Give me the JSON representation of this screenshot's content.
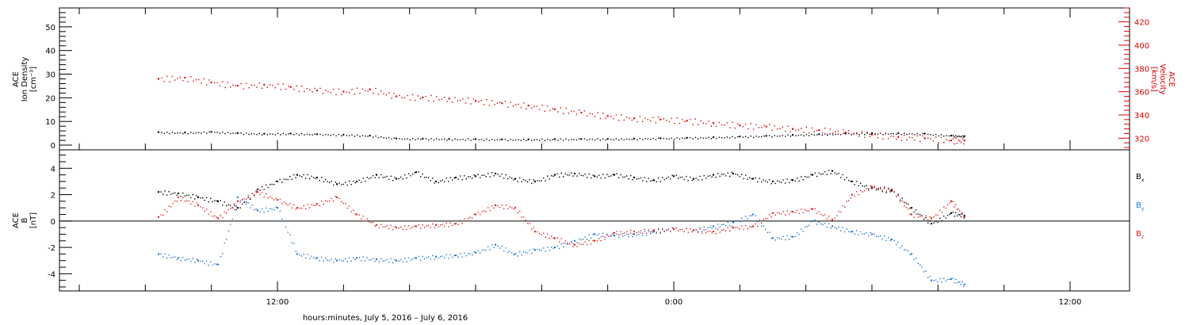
{
  "chart_data": [
    {
      "type": "scatter",
      "panel": "top",
      "ylabel_left": [
        "ACE",
        "Ion Density",
        "[cm⁻³]"
      ],
      "ylabel_right": [
        "ACE",
        "Velocity",
        "[km/s]"
      ],
      "ylim_left": [
        -2,
        58
      ],
      "ylim_right": [
        310,
        432
      ],
      "yticks_left": [
        "0",
        "10",
        "20",
        "30",
        "40",
        "50"
      ],
      "yticks_right": [
        "320",
        "340",
        "360",
        "380",
        "400",
        "420"
      ],
      "colors": {
        "density": "#000000",
        "velocity": "#dd0000"
      },
      "series": [
        {
          "axis": "left",
          "color": "#000000",
          "x": [
            -15.6,
            -14.8,
            -14,
            -13.2,
            -12.4,
            -11.6,
            -10.8,
            -10,
            -9.2,
            -8.4,
            -7.6,
            -6.8,
            -6,
            -5.2,
            -4.4,
            -3.6,
            -2.8,
            -2,
            -1.2,
            -0.4,
            0.4,
            1.2,
            2,
            2.8,
            3.6,
            4.4,
            5.2,
            6,
            6.8,
            7.6,
            8.4,
            8.8
          ],
          "y": [
            5.4,
            5.3,
            5.6,
            5.1,
            4.8,
            4.9,
            4.6,
            4.4,
            4,
            2.8,
            2.7,
            2.6,
            2.5,
            2.4,
            2.4,
            2.5,
            2.6,
            2.6,
            2.7,
            2.9,
            3.1,
            3.3,
            3.6,
            3.9,
            4.3,
            4.6,
            4.9,
            5,
            5,
            4.8,
            4,
            3.8
          ]
        }
      ],
      "series_right": [
        {
          "axis": "right",
          "color": "#dd0000",
          "x": [
            -15.6,
            -14.8,
            -14,
            -13.2,
            -12.4,
            -11.6,
            -10.8,
            -10,
            -9.2,
            -8.4,
            -7.6,
            -6.8,
            -6,
            -5.2,
            -4.4,
            -3.6,
            -2.8,
            -2,
            -1.2,
            -0.4,
            0.4,
            1.2,
            2,
            2.8,
            3.6,
            4.4,
            5.2,
            6,
            6.8,
            7.6,
            8.4,
            8.8
          ],
          "y": [
            371,
            372,
            368,
            365,
            366,
            364,
            361,
            360,
            362,
            356,
            355,
            354,
            352,
            350,
            348,
            345,
            342,
            339,
            337,
            336,
            335,
            333,
            331,
            330,
            328,
            327,
            325,
            323,
            321,
            320,
            318,
            318
          ]
        }
      ]
    },
    {
      "type": "scatter",
      "panel": "bottom",
      "ylabel": [
        "ACE",
        "B",
        "[nT]"
      ],
      "ylim": [
        -5.3,
        5.4
      ],
      "yticks": [
        "-4",
        "-2",
        "0",
        "2",
        "4"
      ],
      "colors": {
        "bx": "#000000",
        "by": "#1e78d2",
        "bz": "#e02020"
      },
      "legend": [
        {
          "label": "B",
          "sub": "x",
          "color": "#000000"
        },
        {
          "label": "B",
          "sub": "y",
          "color": "#1e78d2"
        },
        {
          "label": "B",
          "sub": "z",
          "color": "#e02020"
        }
      ],
      "series": [
        {
          "name": "Bx",
          "color": "#000000",
          "x": [
            -15.6,
            -15,
            -14.4,
            -13.8,
            -13.2,
            -12.6,
            -12,
            -11.4,
            -10.8,
            -10.2,
            -9.6,
            -9,
            -8.4,
            -7.8,
            -7.2,
            -6.6,
            -6,
            -5.4,
            -4.8,
            -4.2,
            -3.6,
            -3,
            -2.4,
            -1.8,
            -1.2,
            -0.6,
            0,
            0.6,
            1.2,
            1.8,
            2.4,
            3,
            3.6,
            4.2,
            4.8,
            5.4,
            6,
            6.6,
            7.2,
            7.8,
            8.4,
            8.8
          ],
          "y": [
            2.2,
            2.1,
            1.8,
            1.5,
            1.0,
            2.4,
            3.0,
            3.5,
            3.3,
            2.8,
            3.0,
            3.5,
            3.2,
            3.7,
            3.0,
            3.3,
            3.4,
            3.6,
            3.2,
            3.0,
            3.5,
            3.6,
            3.4,
            3.5,
            3.3,
            3.1,
            3.4,
            3.2,
            3.5,
            3.6,
            3.2,
            3.0,
            3.1,
            3.5,
            3.8,
            3.0,
            2.5,
            2.3,
            1.0,
            -0.2,
            0.6,
            0.4
          ]
        },
        {
          "name": "By",
          "color": "#1e78d2",
          "x": [
            -15.6,
            -15,
            -14.4,
            -13.8,
            -13.2,
            -12.6,
            -12,
            -11.4,
            -10.8,
            -10.2,
            -9.6,
            -9,
            -8.4,
            -7.8,
            -7.2,
            -6.6,
            -6,
            -5.4,
            -4.8,
            -4.2,
            -3.6,
            -3,
            -2.4,
            -1.8,
            -1.2,
            -0.6,
            0,
            0.6,
            1.2,
            1.8,
            2.4,
            3,
            3.6,
            4.2,
            4.8,
            5.4,
            6,
            6.6,
            7.2,
            7.8,
            8.4,
            8.8
          ],
          "y": [
            -2.5,
            -2.8,
            -3.0,
            -3.3,
            1.8,
            0.8,
            1.0,
            -2.5,
            -2.8,
            -3.0,
            -2.8,
            -2.9,
            -3.0,
            -2.8,
            -2.7,
            -2.6,
            -2.4,
            -1.8,
            -2.5,
            -2.2,
            -2.0,
            -1.5,
            -1.0,
            -1.1,
            -1.0,
            -0.8,
            -0.6,
            -0.7,
            -0.4,
            -0.1,
            0.5,
            -1.3,
            -1.2,
            0.0,
            -0.4,
            -0.8,
            -1.0,
            -1.4,
            -2.5,
            -4.5,
            -4.4,
            -4.8
          ]
        },
        {
          "name": "Bz",
          "color": "#e02020",
          "x": [
            -15.6,
            -15,
            -14.4,
            -13.8,
            -13.2,
            -12.6,
            -12,
            -11.4,
            -10.8,
            -10.2,
            -9.6,
            -9,
            -8.4,
            -7.8,
            -7.2,
            -6.6,
            -6,
            -5.4,
            -4.8,
            -4.2,
            -3.6,
            -3,
            -2.4,
            -1.8,
            -1.2,
            -0.6,
            0,
            0.6,
            1.2,
            1.8,
            2.4,
            3,
            3.6,
            4.2,
            4.8,
            5.4,
            6,
            6.6,
            7.2,
            7.8,
            8.4,
            8.8
          ],
          "y": [
            0.3,
            1.8,
            1.2,
            0.2,
            1.5,
            2.2,
            1.6,
            1.0,
            1.3,
            1.8,
            0.5,
            -0.3,
            -0.5,
            -0.4,
            -0.3,
            -0.2,
            0.5,
            1.2,
            1.0,
            -0.8,
            -1.3,
            -1.8,
            -1.5,
            -0.9,
            -0.8,
            -0.7,
            -0.6,
            -0.7,
            -0.8,
            -0.5,
            -0.4,
            0.6,
            0.7,
            0.9,
            0.1,
            2.0,
            2.6,
            2.4,
            0.5,
            0.2,
            1.5,
            0.3
          ]
        }
      ]
    }
  ],
  "x_axis": {
    "xlim_hours": [
      -18.6,
      13.8
    ],
    "major_ticks": [
      {
        "hour": -12,
        "label": "12:00"
      },
      {
        "hour": 0,
        "label": "0:00"
      },
      {
        "hour": 12,
        "label": "12:00"
      }
    ],
    "minor_step_hours": 2,
    "xlabel": "hours:minutes,  July  5, 2016  –  July  6, 2016"
  }
}
